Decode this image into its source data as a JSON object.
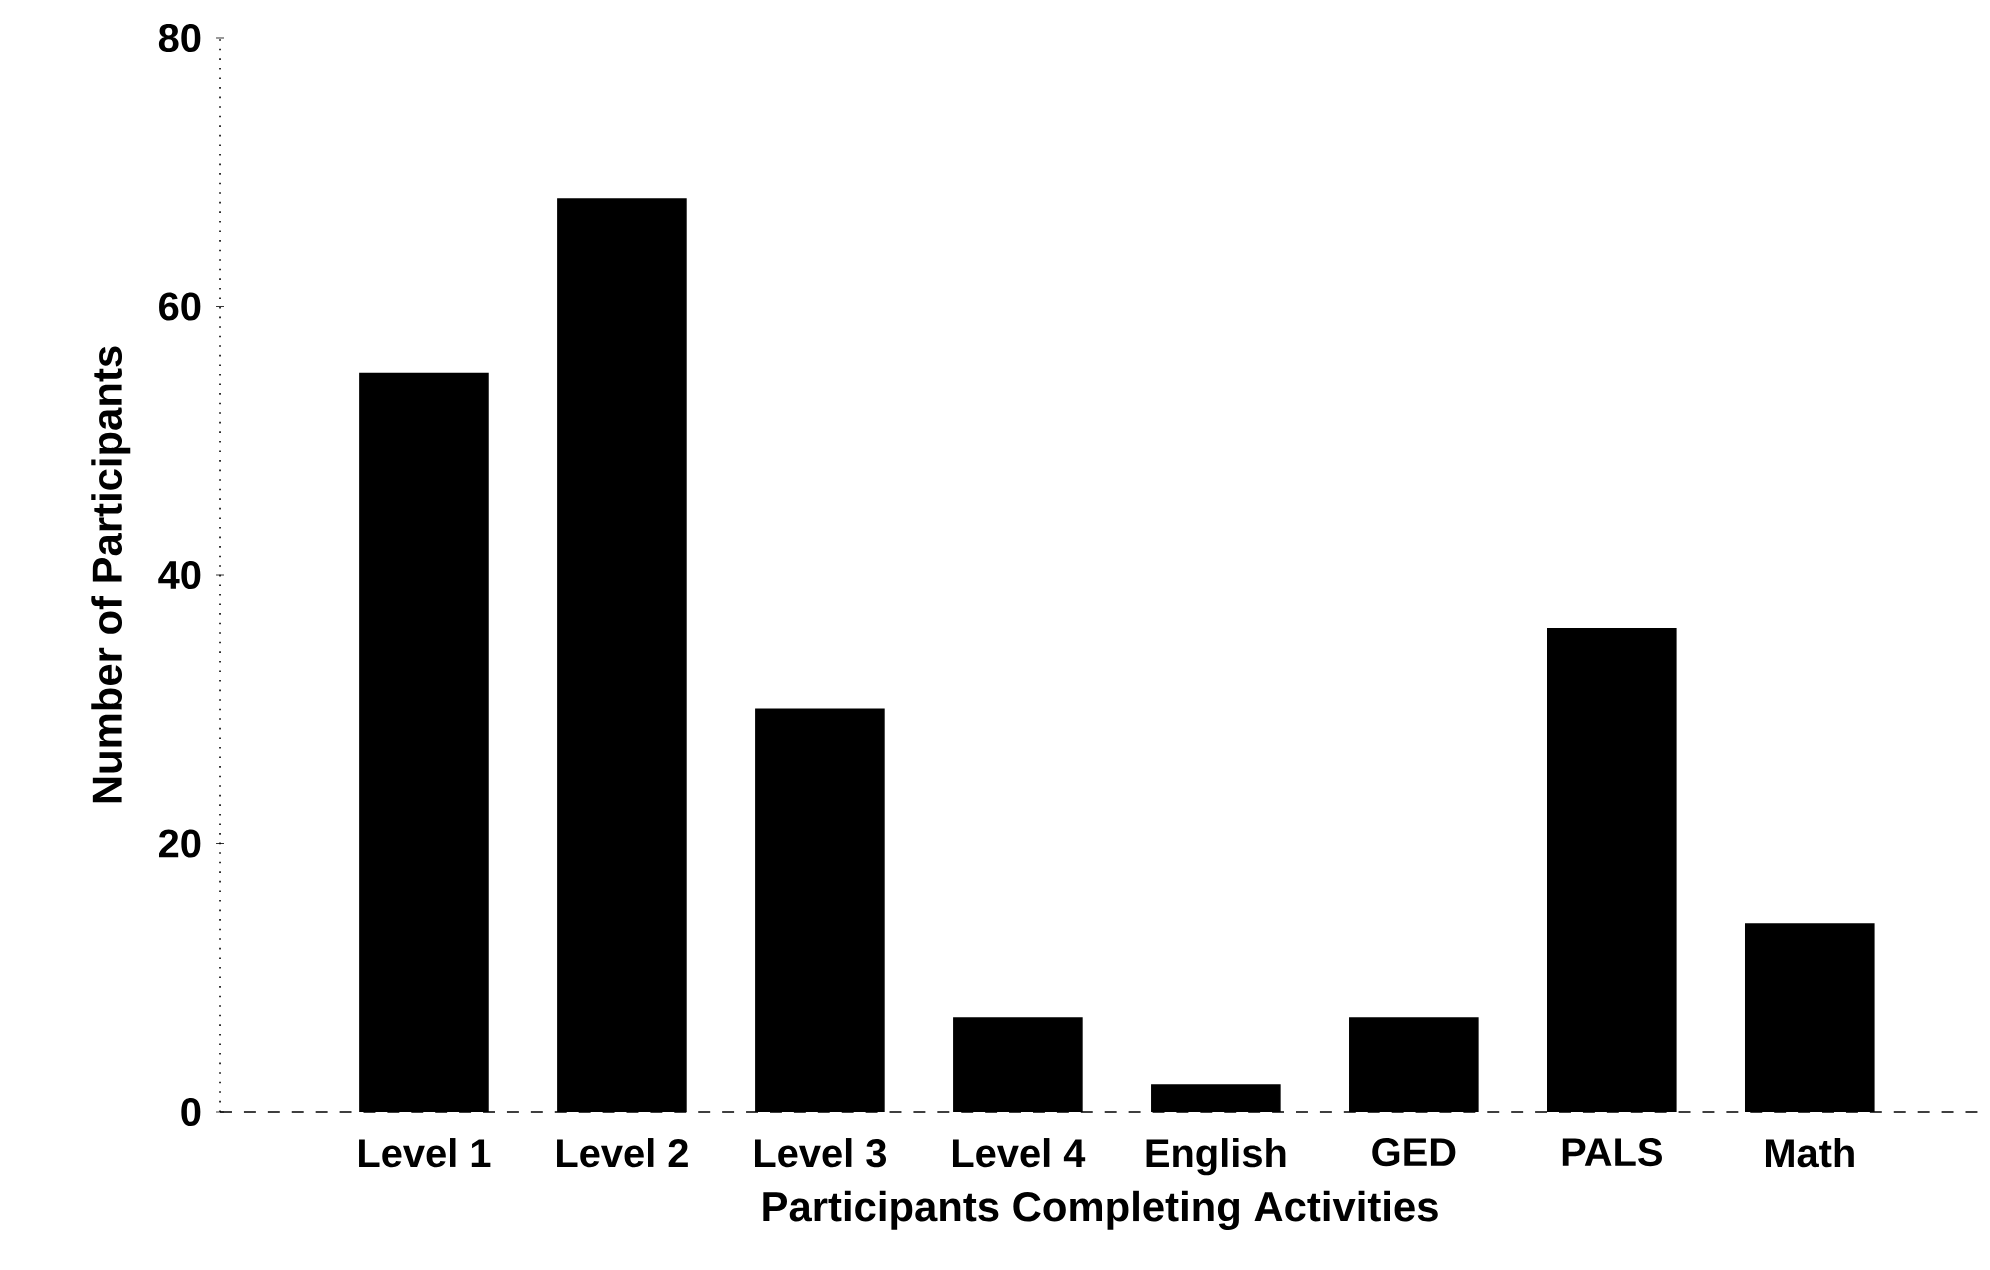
{
  "chart_data": {
    "type": "bar",
    "xlabel": "Participants Completing Activities",
    "ylabel": "Number of Participants",
    "categories": [
      "Level 1",
      "Level 2",
      "Level 3",
      "Level 4",
      "English",
      "GED",
      "PALS",
      "Math"
    ],
    "values": [
      55,
      68,
      30,
      7,
      2,
      7,
      36,
      14
    ],
    "color": "#000000",
    "ylim": [
      0,
      80
    ],
    "yticks": [
      0,
      20,
      40,
      60,
      80
    ]
  }
}
